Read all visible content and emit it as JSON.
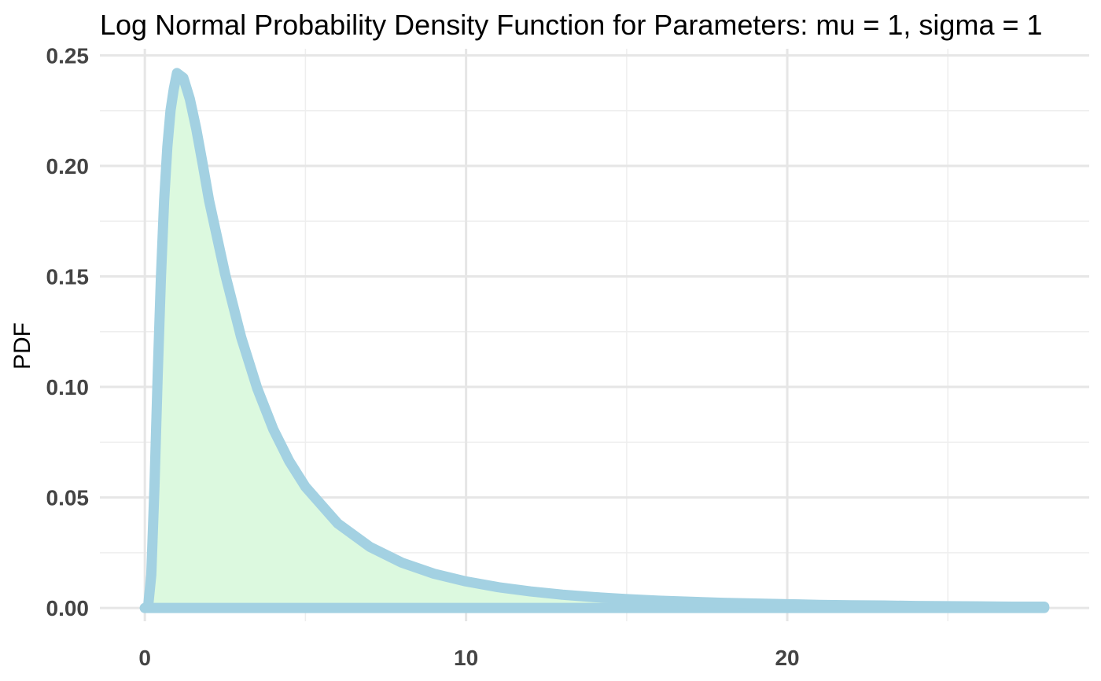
{
  "chart_data": {
    "type": "area",
    "title": "Log Normal Probability Density Function for Parameters: mu = 1, sigma = 1",
    "xlabel": "",
    "ylabel": "PDF",
    "xlim": [
      -1.4,
      29.4
    ],
    "ylim": [
      -0.006,
      0.253
    ],
    "x_ticks": [
      0,
      10,
      20
    ],
    "x_tick_labels": [
      "0",
      "10",
      "20"
    ],
    "y_ticks": [
      0,
      0.05,
      0.1,
      0.15,
      0.2,
      0.25
    ],
    "y_tick_labels": [
      "0.00",
      "0.05",
      "0.10",
      "0.15",
      "0.20",
      "0.25"
    ],
    "x_minor_ticks": [
      5,
      15,
      25
    ],
    "y_minor_ticks": [
      0.025,
      0.075,
      0.125,
      0.175,
      0.225
    ],
    "grid": true,
    "legend": "none",
    "series": [
      {
        "x": [
          0,
          0.1,
          0.2,
          0.3,
          0.4,
          0.5,
          0.6,
          0.7,
          0.8,
          0.9,
          1.0,
          1.2,
          1.4,
          1.6,
          1.8,
          2.0,
          2.5,
          3.0,
          3.5,
          4.0,
          4.5,
          5,
          6,
          7,
          8,
          9,
          10,
          11,
          12,
          13,
          14,
          15,
          16,
          17,
          18,
          19,
          20,
          21,
          22,
          23,
          24,
          25,
          26,
          27,
          28
        ],
        "y": [
          0,
          0.0004,
          0.0149,
          0.0552,
          0.1053,
          0.1492,
          0.1842,
          0.2085,
          0.2251,
          0.2347,
          0.242,
          0.2398,
          0.2303,
          0.2168,
          0.2009,
          0.1843,
          0.151,
          0.1224,
          0.0993,
          0.0808,
          0.0663,
          0.0548,
          0.0383,
          0.0277,
          0.0205,
          0.0155,
          0.012,
          0.0094,
          0.0075,
          0.006,
          0.0049,
          0.004,
          0.0033,
          0.0028,
          0.0023,
          0.002,
          0.0017,
          0.0014,
          0.0012,
          0.0011,
          0.0009,
          0.0008,
          0.0007,
          0.0006,
          0.0006
        ]
      }
    ],
    "colors": {
      "line": "#a3d1e2",
      "fill": "#dcf9df"
    }
  }
}
